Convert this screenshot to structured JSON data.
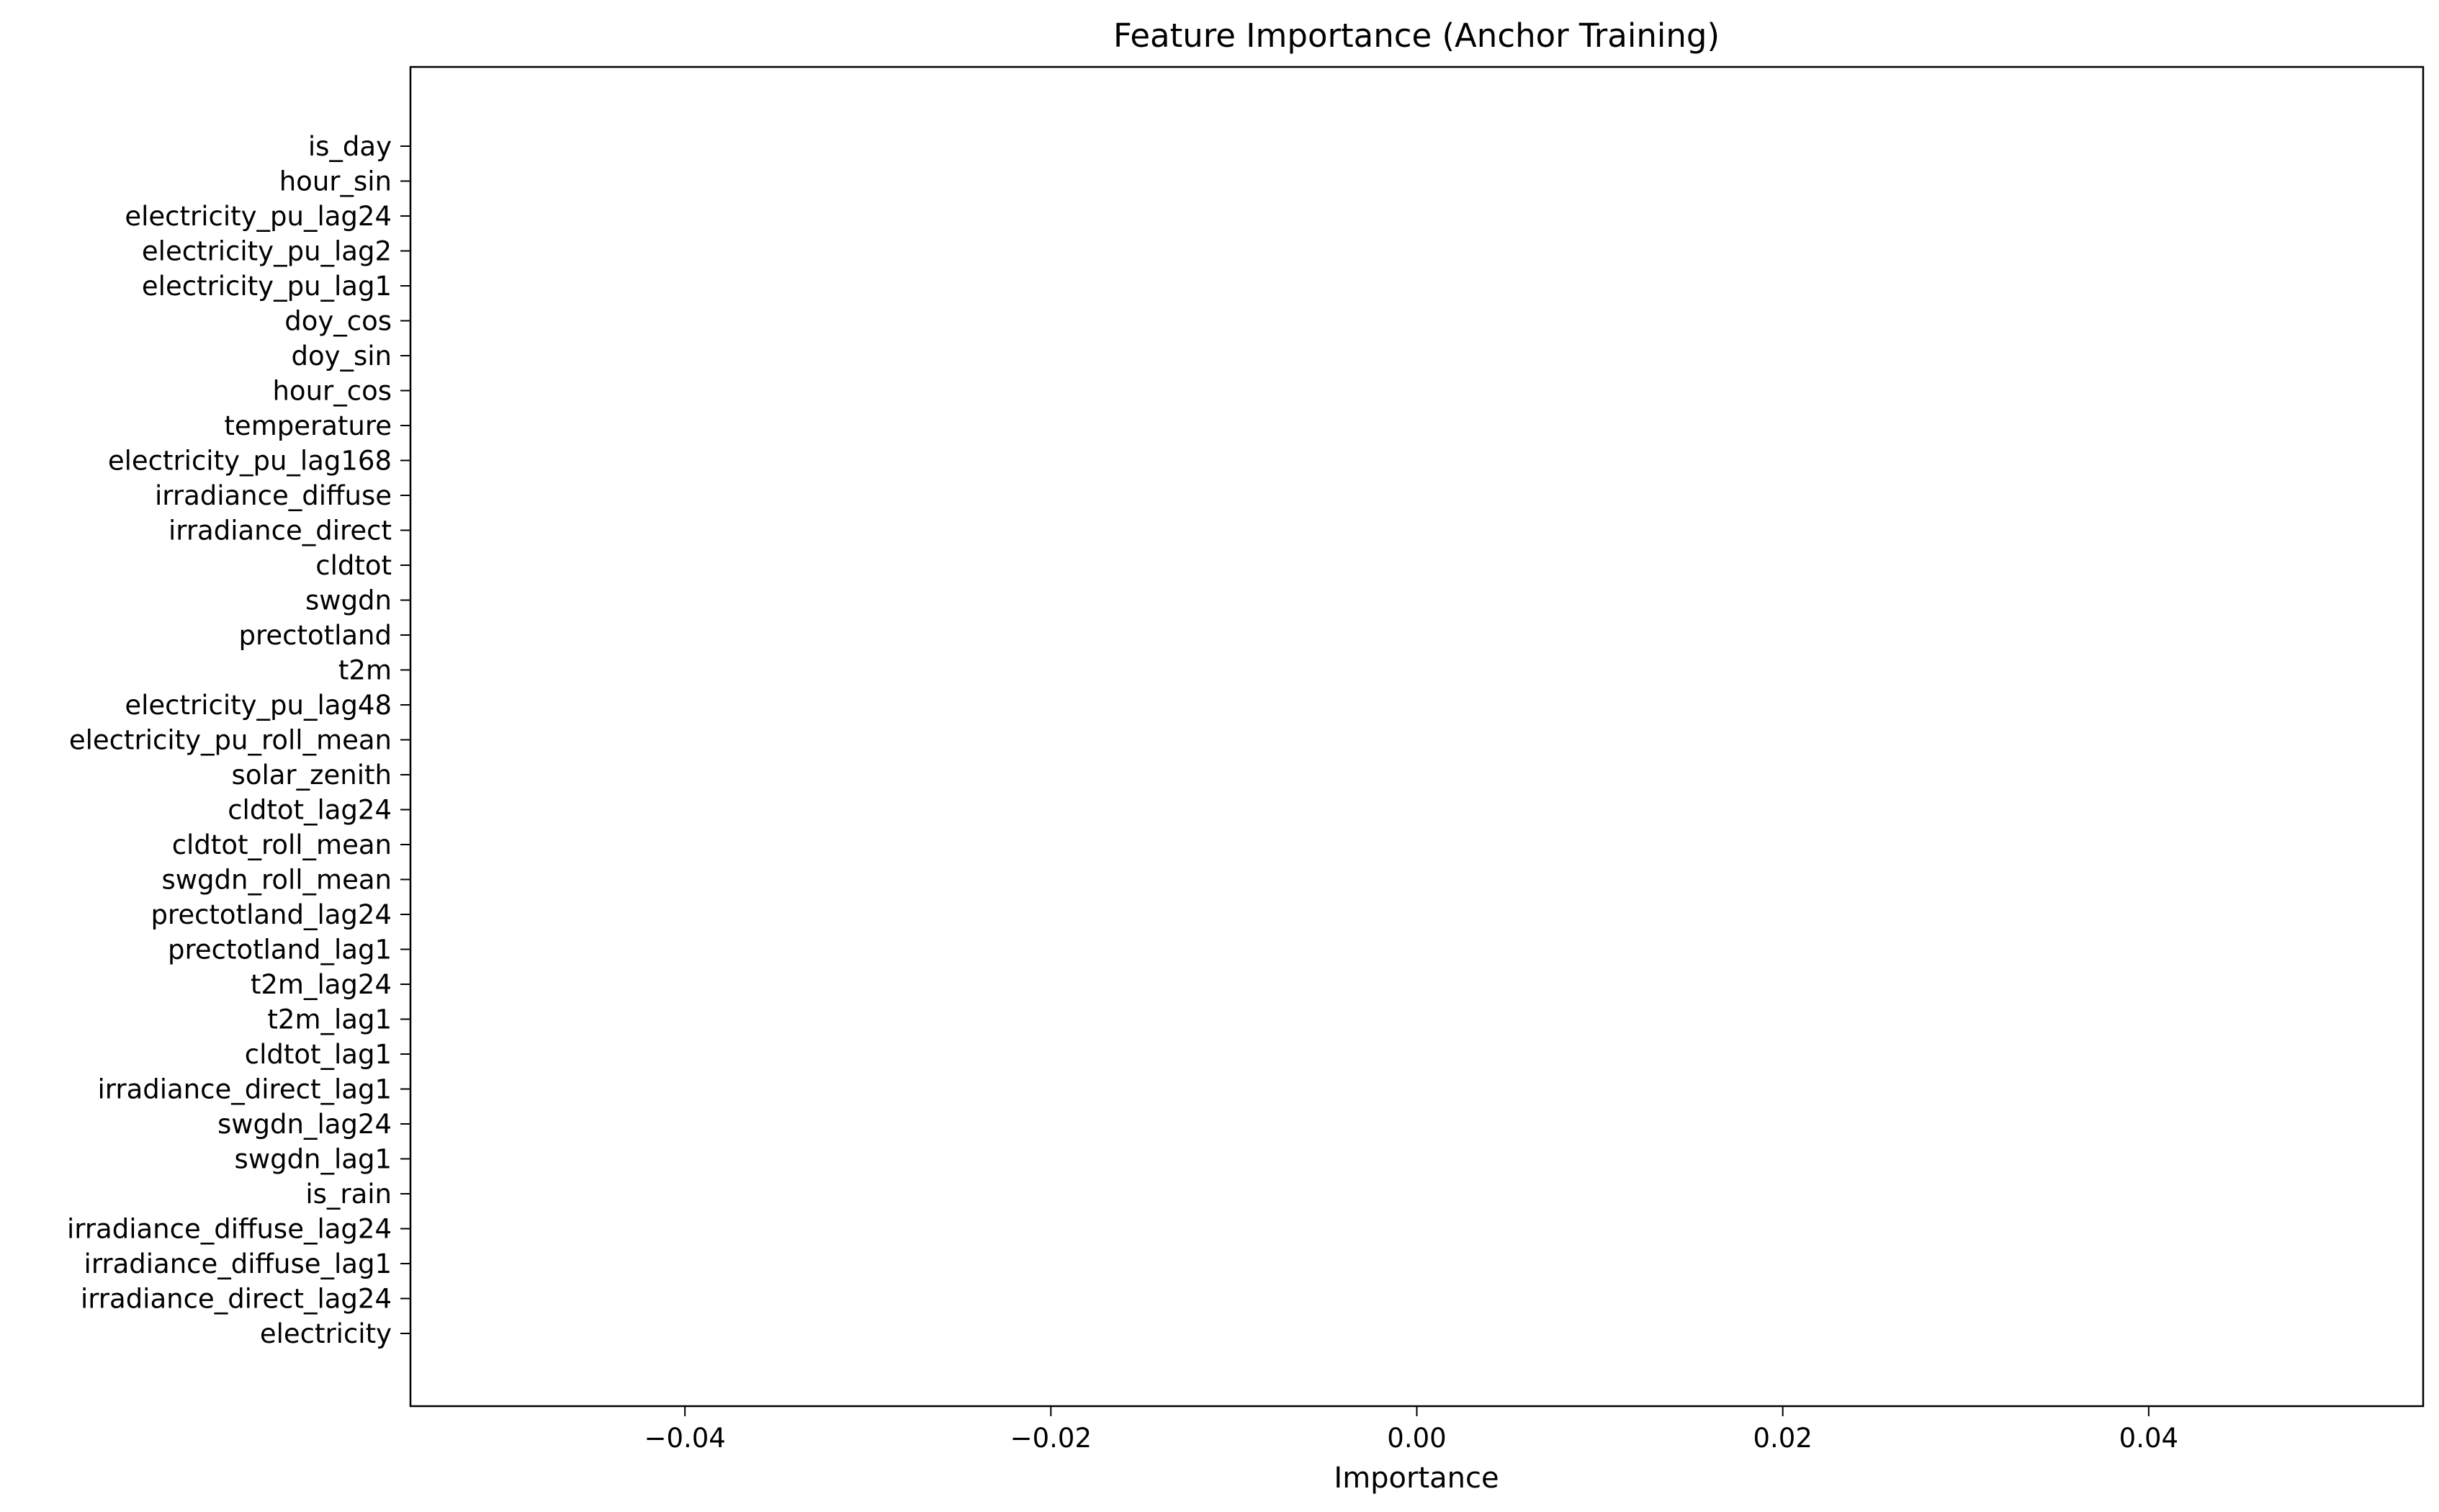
{
  "chart_data": {
    "type": "bar",
    "orientation": "horizontal",
    "title": "Feature Importance (Anchor Training)",
    "xlabel": "Importance",
    "ylabel": "",
    "xlim": [
      -0.055,
      0.055
    ],
    "xticks": [
      -0.04,
      -0.02,
      0.0,
      0.02,
      0.04
    ],
    "xtick_labels": [
      "−0.04",
      "−0.02",
      "0.00",
      "0.02",
      "0.04"
    ],
    "grid": false,
    "categories": [
      "is_day",
      "hour_sin",
      "electricity_pu_lag24",
      "electricity_pu_lag2",
      "electricity_pu_lag1",
      "doy_cos",
      "doy_sin",
      "hour_cos",
      "temperature",
      "electricity_pu_lag168",
      "irradiance_diffuse",
      "irradiance_direct",
      "cldtot",
      "swgdn",
      "prectotland",
      "t2m",
      "electricity_pu_lag48",
      "electricity_pu_roll_mean",
      "solar_zenith",
      "cldtot_lag24",
      "cldtot_roll_mean",
      "swgdn_roll_mean",
      "prectotland_lag24",
      "prectotland_lag1",
      "t2m_lag24",
      "t2m_lag1",
      "cldtot_lag1",
      "irradiance_direct_lag1",
      "swgdn_lag24",
      "swgdn_lag1",
      "is_rain",
      "irradiance_diffuse_lag24",
      "irradiance_diffuse_lag1",
      "irradiance_direct_lag24",
      "electricity"
    ],
    "values": [
      0,
      0,
      0,
      0,
      0,
      0,
      0,
      0,
      0,
      0,
      0,
      0,
      0,
      0,
      0,
      0,
      0,
      0,
      0,
      0,
      0,
      0,
      0,
      0,
      0,
      0,
      0,
      0,
      0,
      0,
      0,
      0,
      0,
      0,
      0
    ],
    "colors": {
      "bar": "#1f77b4",
      "axis": "#000000"
    }
  }
}
